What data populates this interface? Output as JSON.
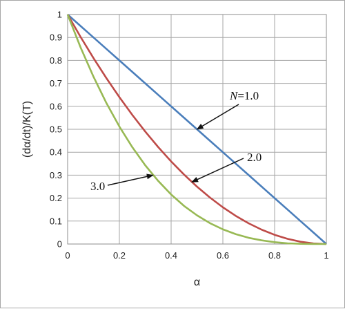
{
  "chart_data": {
    "type": "line",
    "title": "",
    "xlabel": "α",
    "ylabel": "(dα/dt)/K(T)",
    "xlim": [
      0,
      1
    ],
    "ylim": [
      0,
      1
    ],
    "x_ticks": [
      "0",
      "0.2",
      "0.4",
      "0.6",
      "0.8",
      "1"
    ],
    "y_ticks": [
      "0",
      "0.1",
      "0.2",
      "0.3",
      "0.4",
      "0.5",
      "0.6",
      "0.7",
      "0.8",
      "0.9",
      "1"
    ],
    "x_tick_values": [
      0,
      0.2,
      0.4,
      0.6,
      0.8,
      1
    ],
    "y_tick_values": [
      0,
      0.1,
      0.2,
      0.3,
      0.4,
      0.5,
      0.6,
      0.7,
      0.8,
      0.9,
      1
    ],
    "grid": true,
    "legend": "none",
    "x": [
      0,
      0.05,
      0.1,
      0.15,
      0.2,
      0.25,
      0.3,
      0.35,
      0.4,
      0.45,
      0.5,
      0.55,
      0.6,
      0.65,
      0.7,
      0.75,
      0.8,
      0.85,
      0.9,
      0.95,
      1
    ],
    "series": [
      {
        "color": "#4a7ebb",
        "values": [
          1,
          0.95,
          0.9,
          0.85,
          0.8,
          0.75,
          0.7,
          0.65,
          0.6,
          0.55,
          0.5,
          0.45,
          0.4,
          0.35,
          0.3,
          0.25,
          0.2,
          0.15,
          0.1,
          0.05,
          0
        ]
      },
      {
        "color": "#be4b48",
        "values": [
          1,
          0.9025,
          0.81,
          0.7225,
          0.64,
          0.5625,
          0.49,
          0.4225,
          0.36,
          0.3025,
          0.25,
          0.2025,
          0.16,
          0.1225,
          0.09,
          0.0625,
          0.04,
          0.0225,
          0.01,
          0.0025,
          0
        ]
      },
      {
        "color": "#98b954",
        "values": [
          1,
          0.857,
          0.729,
          0.614,
          0.512,
          0.422,
          0.343,
          0.275,
          0.216,
          0.166,
          0.125,
          0.091,
          0.064,
          0.043,
          0.027,
          0.016,
          0.008,
          0.003,
          0.001,
          0.0001,
          0
        ]
      }
    ],
    "annotations": [
      {
        "italic": "N",
        "text": "=1.0",
        "target": [
          0.5,
          0.5
        ]
      },
      {
        "text": "2.0",
        "target": [
          0.48,
          0.27
        ]
      },
      {
        "text": "3.0",
        "target": [
          0.33,
          0.3
        ]
      }
    ]
  }
}
